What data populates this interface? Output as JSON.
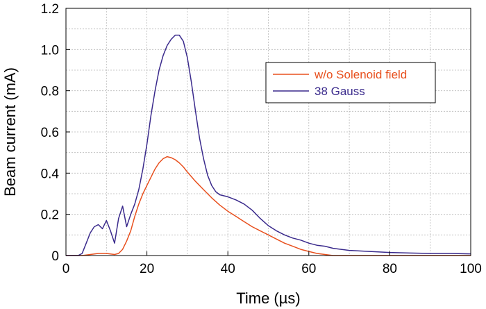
{
  "chart_data": {
    "type": "line",
    "title": "",
    "xlabel": "Time (µs)",
    "ylabel": "Beam current (mA)",
    "xlim": [
      0,
      100
    ],
    "ylim": [
      0,
      1.2
    ],
    "xticks": [
      "0",
      "20",
      "40",
      "60",
      "80",
      "100"
    ],
    "yticks": [
      "0",
      "0.2",
      "0.4",
      "0.6",
      "0.8",
      "1.0",
      "1.2"
    ],
    "grid": true,
    "legend_position": "upper-right",
    "series": [
      {
        "name": "w/o Solenoid field",
        "color": "#e8501e",
        "points": [
          [
            0,
            0
          ],
          [
            4,
            0
          ],
          [
            6,
            0.005
          ],
          [
            8,
            0.01
          ],
          [
            10,
            0.01
          ],
          [
            12,
            0.005
          ],
          [
            13,
            0.01
          ],
          [
            14,
            0.03
          ],
          [
            15,
            0.07
          ],
          [
            16,
            0.12
          ],
          [
            17,
            0.19
          ],
          [
            18,
            0.25
          ],
          [
            19,
            0.3
          ],
          [
            20,
            0.34
          ],
          [
            21,
            0.38
          ],
          [
            22,
            0.42
          ],
          [
            23,
            0.45
          ],
          [
            24,
            0.47
          ],
          [
            25,
            0.48
          ],
          [
            26,
            0.475
          ],
          [
            27,
            0.465
          ],
          [
            28,
            0.45
          ],
          [
            29,
            0.43
          ],
          [
            30,
            0.405
          ],
          [
            32,
            0.36
          ],
          [
            34,
            0.32
          ],
          [
            36,
            0.28
          ],
          [
            38,
            0.245
          ],
          [
            40,
            0.215
          ],
          [
            42,
            0.19
          ],
          [
            44,
            0.165
          ],
          [
            46,
            0.14
          ],
          [
            48,
            0.12
          ],
          [
            50,
            0.1
          ],
          [
            52,
            0.08
          ],
          [
            54,
            0.06
          ],
          [
            56,
            0.045
          ],
          [
            58,
            0.03
          ],
          [
            60,
            0.02
          ],
          [
            62,
            0.01
          ],
          [
            64,
            0.005
          ],
          [
            66,
            0
          ],
          [
            70,
            0
          ],
          [
            80,
            0
          ],
          [
            90,
            0
          ],
          [
            100,
            0
          ]
        ]
      },
      {
        "name": "38 Gauss",
        "color": "#3a2a8c",
        "points": [
          [
            0,
            0
          ],
          [
            3,
            0
          ],
          [
            4,
            0.01
          ],
          [
            5,
            0.06
          ],
          [
            6,
            0.11
          ],
          [
            7,
            0.14
          ],
          [
            8,
            0.15
          ],
          [
            9,
            0.13
          ],
          [
            10,
            0.17
          ],
          [
            11,
            0.12
          ],
          [
            12,
            0.06
          ],
          [
            13,
            0.18
          ],
          [
            14,
            0.24
          ],
          [
            15,
            0.14
          ],
          [
            16,
            0.2
          ],
          [
            17,
            0.25
          ],
          [
            18,
            0.32
          ],
          [
            19,
            0.42
          ],
          [
            20,
            0.54
          ],
          [
            21,
            0.68
          ],
          [
            22,
            0.8
          ],
          [
            23,
            0.9
          ],
          [
            24,
            0.97
          ],
          [
            25,
            1.02
          ],
          [
            26,
            1.05
          ],
          [
            27,
            1.07
          ],
          [
            28,
            1.07
          ],
          [
            29,
            1.04
          ],
          [
            30,
            0.96
          ],
          [
            31,
            0.84
          ],
          [
            32,
            0.7
          ],
          [
            33,
            0.57
          ],
          [
            34,
            0.47
          ],
          [
            35,
            0.39
          ],
          [
            36,
            0.34
          ],
          [
            37,
            0.31
          ],
          [
            38,
            0.295
          ],
          [
            40,
            0.285
          ],
          [
            42,
            0.27
          ],
          [
            44,
            0.25
          ],
          [
            46,
            0.22
          ],
          [
            48,
            0.18
          ],
          [
            50,
            0.145
          ],
          [
            52,
            0.12
          ],
          [
            54,
            0.1
          ],
          [
            56,
            0.085
          ],
          [
            58,
            0.075
          ],
          [
            60,
            0.06
          ],
          [
            62,
            0.05
          ],
          [
            64,
            0.045
          ],
          [
            66,
            0.035
          ],
          [
            68,
            0.03
          ],
          [
            70,
            0.025
          ],
          [
            75,
            0.02
          ],
          [
            80,
            0.015
          ],
          [
            85,
            0.012
          ],
          [
            90,
            0.01
          ],
          [
            95,
            0.01
          ],
          [
            100,
            0.008
          ]
        ]
      }
    ]
  }
}
